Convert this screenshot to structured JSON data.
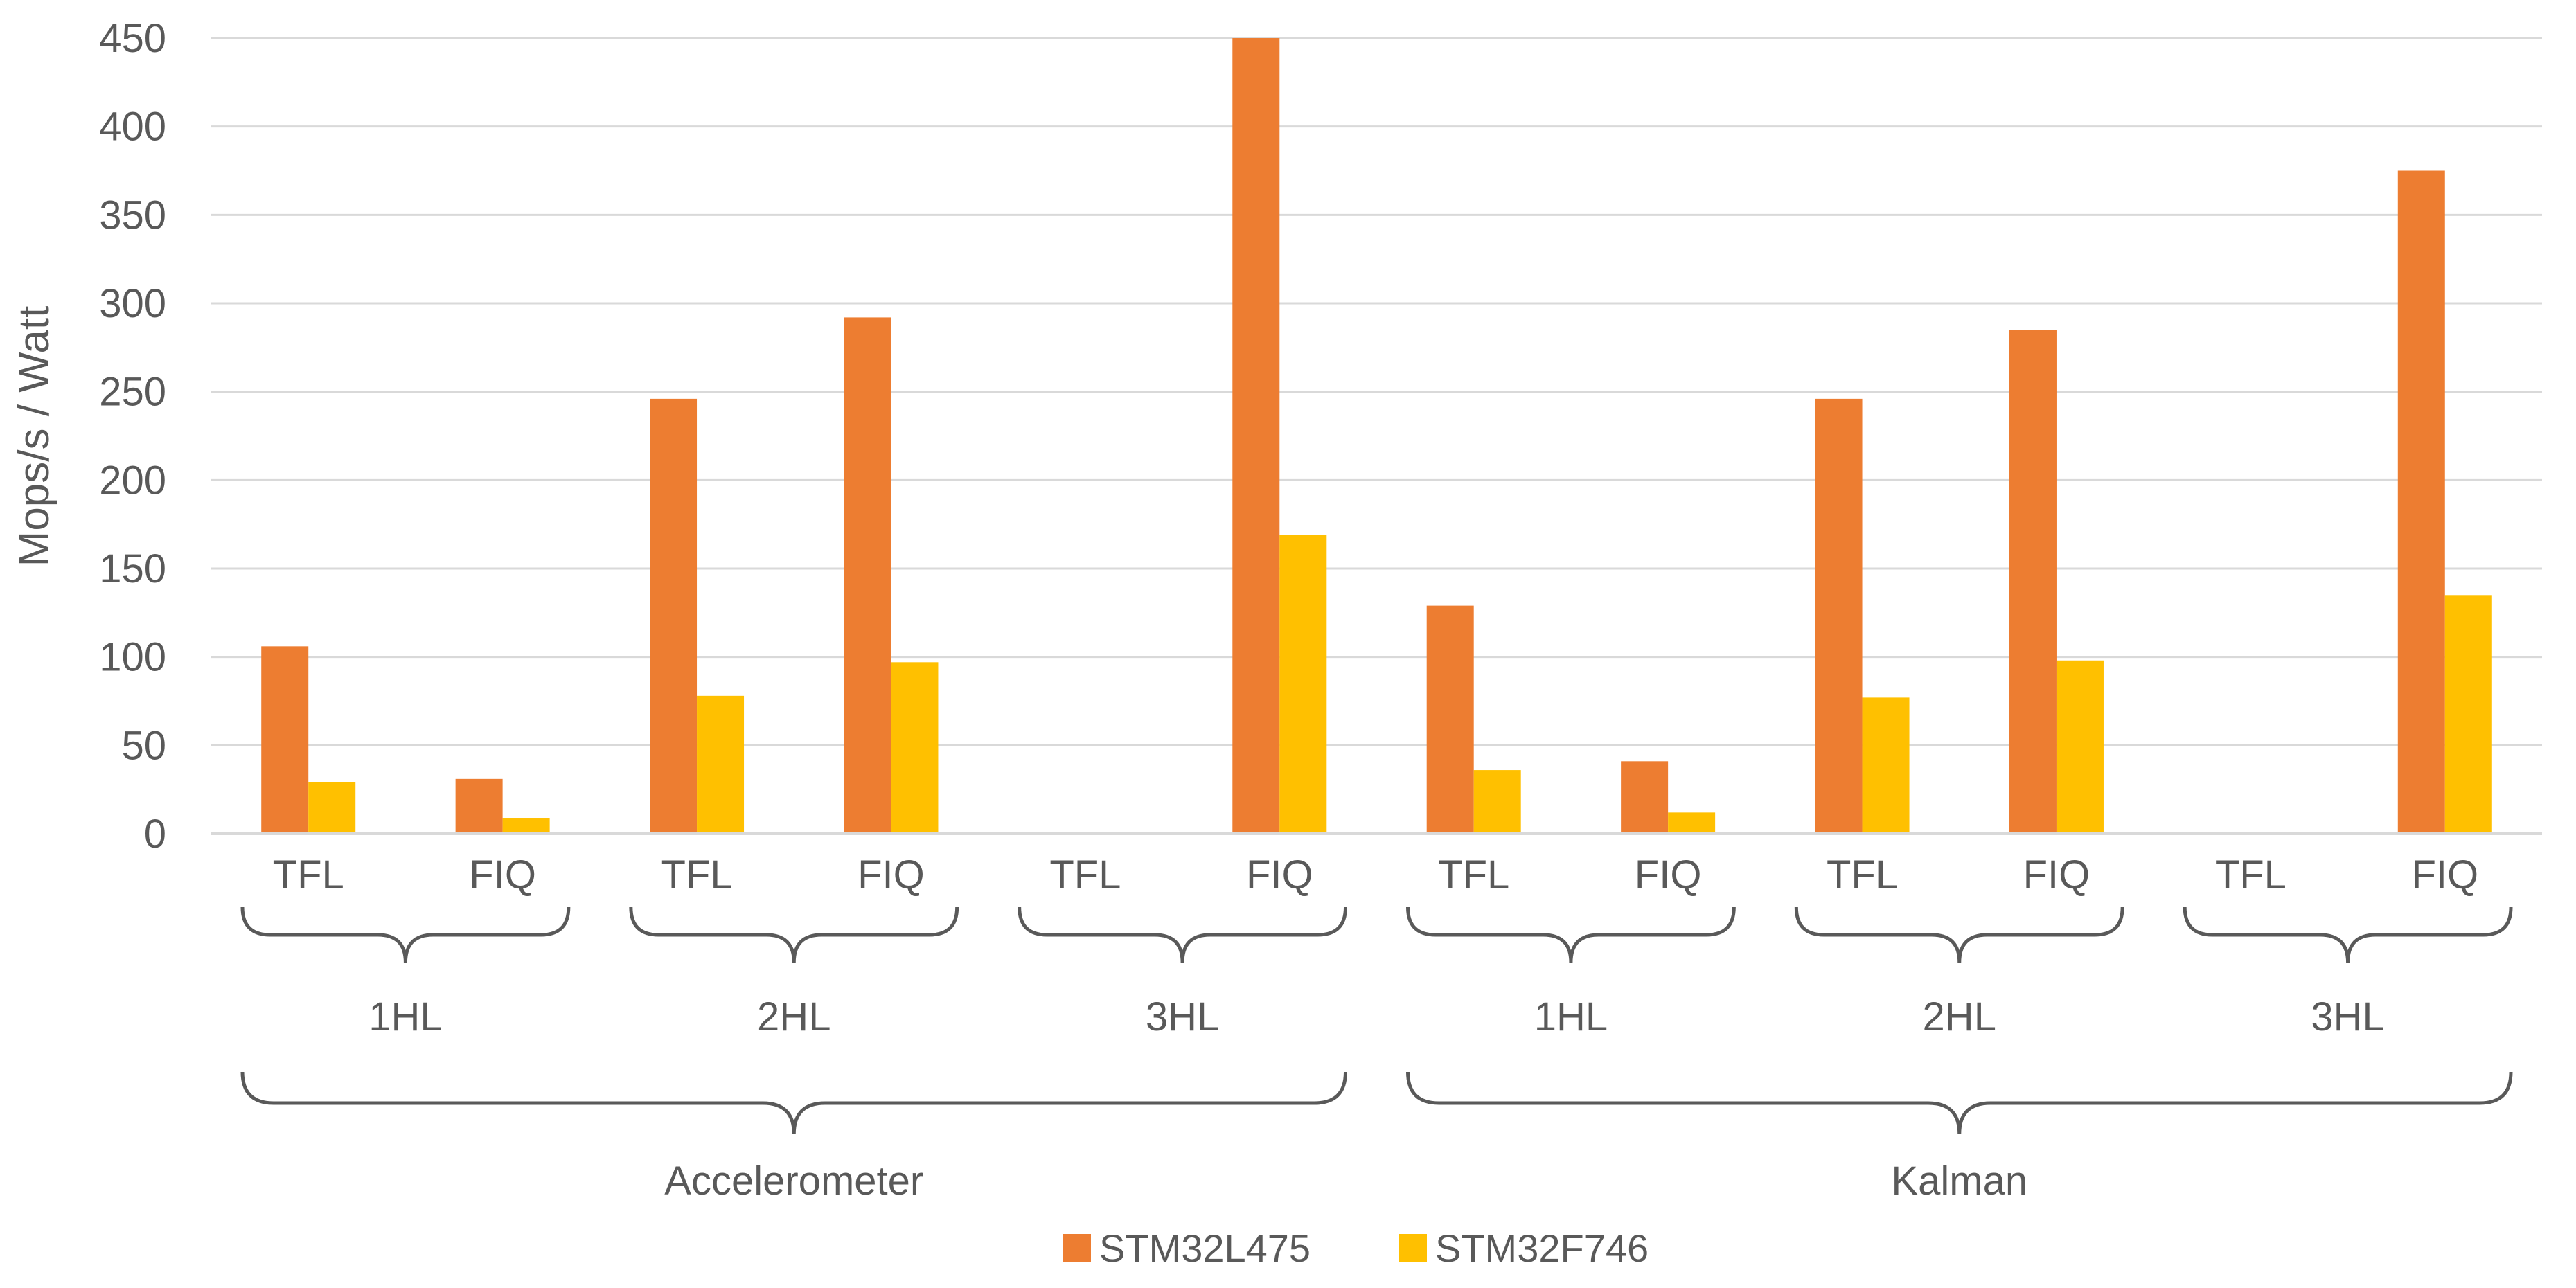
{
  "chart_data": {
    "type": "bar",
    "ylabel": "Mops/s  / Watt",
    "ylim": [
      0,
      450
    ],
    "yticks": [
      0,
      50,
      100,
      150,
      200,
      250,
      300,
      350,
      400,
      450
    ],
    "grid": true,
    "legend_position": "bottom",
    "categories": [
      "TFL",
      "FIQ",
      "TFL",
      "FIQ",
      "TFL",
      "FIQ",
      "TFL",
      "FIQ",
      "TFL",
      "FIQ",
      "TFL",
      "FIQ"
    ],
    "level2_groups": [
      "1HL",
      "2HL",
      "3HL",
      "1HL",
      "2HL",
      "3HL"
    ],
    "level3_groups": [
      "Accelerometer",
      "Kalman"
    ],
    "series": [
      {
        "name": "STM32L475",
        "color": "#ED7D31",
        "values": [
          106,
          31,
          246,
          292,
          null,
          450,
          129,
          41,
          246,
          285,
          null,
          375
        ]
      },
      {
        "name": "STM32F746",
        "color": "#FFC000",
        "values": [
          29,
          9,
          78,
          97,
          null,
          169,
          36,
          12,
          77,
          98,
          null,
          135
        ]
      }
    ]
  }
}
